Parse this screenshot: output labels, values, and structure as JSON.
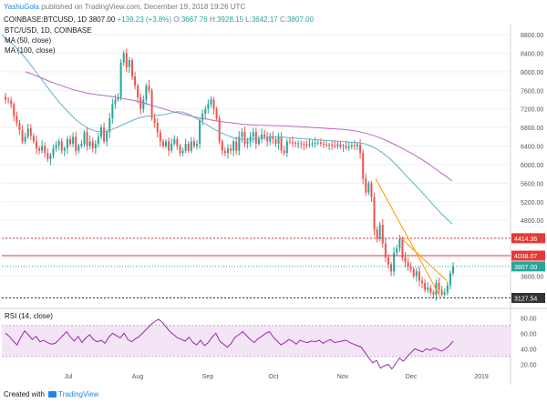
{
  "header": {
    "author": "YashuGola",
    "published": "published on TradingView.com, December 19, 2018 19:26 UTC",
    "symbol": "COINBASE:BTCUSD, 1D",
    "last_price": "3807.00",
    "change": "+139.23 (+3.8%)",
    "o_label": "O:",
    "o_value": "3667.76",
    "h_label": "H:",
    "h_value": "3928.15",
    "l_label": "L:",
    "l_value": "3642.17",
    "c_label": "C:",
    "c_value": "3807.00"
  },
  "legend": {
    "title": "BTC/USD, 1D, COINBASE",
    "ma50": "MA (50, close)",
    "ma100": "MA (100, close)"
  },
  "rsi_legend": "RSI (14, close)",
  "footer": {
    "created_with": "Created with",
    "brand": "TradingView"
  },
  "colors": {
    "up": "#26a69a",
    "down": "#ef5350",
    "ma50": "#5fb3c7",
    "ma100": "#ba68c8",
    "rsi": "#9c27b0",
    "trend": "#ff9800",
    "level_red": "#e53935",
    "grid": "#eef0f3"
  },
  "chart_data": {
    "type": "candlestick",
    "x_labels": [
      "Jul",
      "Aug",
      "Sep",
      "Oct",
      "Nov",
      "Dec",
      "2019"
    ],
    "price_ticks": [
      3600,
      4000,
      4400,
      4800,
      5200,
      5600,
      6000,
      6400,
      6800,
      7200,
      7600,
      8000,
      8400,
      8800
    ],
    "ylim": [
      3000,
      8900
    ],
    "level_labels": [
      {
        "value": 4414.36,
        "label": "4414.36",
        "style": "red-dotted"
      },
      {
        "value": 4038.07,
        "label": "4038.07",
        "style": "red-solid"
      },
      {
        "value": 3807.0,
        "label": "3807.00",
        "style": "last-price"
      },
      {
        "value": 3127.54,
        "label": "3127.54",
        "style": "dark-dotted"
      }
    ],
    "closes": [
      7400,
      7380,
      7300,
      7050,
      6900,
      6750,
      6500,
      6600,
      6780,
      6620,
      6500,
      6350,
      6300,
      6400,
      6250,
      6120,
      6200,
      6350,
      6420,
      6500,
      6300,
      6350,
      6550,
      6450,
      6600,
      6300,
      6400,
      6450,
      6700,
      6400,
      6500,
      6350,
      6450,
      6600,
      6800,
      6500,
      6700,
      7000,
      7300,
      7400,
      7450,
      8200,
      8400,
      8100,
      8250,
      7900,
      7700,
      7450,
      7200,
      7400,
      7700,
      7600,
      7000,
      6900,
      6700,
      6500,
      6400,
      6500,
      6300,
      6450,
      6550,
      6400,
      6250,
      6300,
      6450,
      6300,
      6500,
      6400,
      6450,
      6950,
      7100,
      7200,
      7300,
      7400,
      7200,
      7000,
      6500,
      6300,
      6250,
      6350,
      6300,
      6500,
      6300,
      6600,
      6700,
      6450,
      6500,
      6600,
      6700,
      6450,
      6550,
      6650,
      6600,
      6500,
      6600,
      6550,
      6450,
      6600,
      6300,
      6250,
      6500,
      6480,
      6470,
      6450,
      6460,
      6440,
      6430,
      6420,
      6450,
      6460,
      6470,
      6480,
      6450,
      6440,
      6420,
      6430,
      6410,
      6400,
      6440,
      6380,
      6400,
      6360,
      6390,
      6420,
      6400,
      6430,
      6250,
      5700,
      5400,
      5600,
      5300,
      4600,
      4400,
      4700,
      4300,
      4000,
      3850,
      3700,
      4100,
      4200,
      4400,
      4000,
      3900,
      3800,
      3750,
      3600,
      3700,
      3500,
      3450,
      3300,
      3350,
      3250,
      3200,
      3450,
      3300,
      3200,
      3250,
      3400,
      3660,
      3807
    ],
    "ma50": [
      8800,
      8680,
      8560,
      8420,
      8260,
      8080,
      7900,
      7720,
      7540,
      7370,
      7220,
      7080,
      6950,
      6850,
      6770,
      6720,
      6700,
      6720,
      6780,
      6840,
      6900,
      6960,
      7010,
      7040,
      7050,
      7060,
      7080,
      7110,
      7140,
      7130,
      7080,
      7000,
      6920,
      6840,
      6760,
      6690,
      6630,
      6580,
      6550,
      6540,
      6550,
      6560,
      6580,
      6600,
      6600,
      6590,
      6580,
      6570,
      6560,
      6550,
      6540,
      6530,
      6520,
      6510,
      6500,
      6490,
      6480,
      6470,
      6450,
      6400,
      6330,
      6240,
      6130,
      6000,
      5860,
      5710,
      5570,
      5430,
      5280,
      5130,
      4980,
      4850,
      4720
    ],
    "ma100": [
      8000,
      7940,
      7870,
      7800,
      7740,
      7680,
      7620,
      7580,
      7540,
      7510,
      7490,
      7470,
      7440,
      7410,
      7380,
      7340,
      7290,
      7240,
      7190,
      7140,
      7100,
      7060,
      7020,
      6990,
      6960,
      6930,
      6910,
      6890,
      6870,
      6860,
      6850,
      6845,
      6840,
      6835,
      6830,
      6820,
      6810,
      6800,
      6790,
      6780,
      6770,
      6760,
      6740,
      6710,
      6670,
      6620,
      6560,
      6480,
      6400,
      6310,
      6220,
      6120,
      6010,
      5890,
      5770,
      5650
    ],
    "trendlines": [
      {
        "from_price": 5700,
        "to_price": 3150,
        "color": "orange"
      },
      {
        "from_price": 4414.36,
        "to_price": 3500,
        "color": "orange"
      }
    ],
    "rsi_ticks": [
      20,
      40,
      60,
      80
    ],
    "rsi_ylim": [
      10,
      85
    ],
    "rsi_band": [
      30,
      70
    ],
    "rsi": [
      60,
      56,
      50,
      45,
      55,
      63,
      58,
      52,
      56,
      49,
      51,
      48,
      46,
      47,
      52,
      57,
      62,
      55,
      50,
      56,
      48,
      54,
      58,
      52,
      49,
      51,
      47,
      55,
      60,
      57,
      54,
      60,
      52,
      49,
      53,
      56,
      61,
      66,
      71,
      75,
      78,
      74,
      68,
      62,
      58,
      54,
      52,
      50,
      55,
      48,
      45,
      51,
      44,
      48,
      55,
      60,
      50,
      46,
      42,
      47,
      55,
      58,
      62,
      57,
      52,
      48,
      53,
      56,
      60,
      62,
      55,
      50,
      45,
      48,
      52,
      50,
      46,
      51,
      49,
      48,
      50,
      49,
      51,
      47,
      50,
      52,
      48,
      49,
      50,
      51,
      48,
      46,
      44,
      42,
      35,
      28,
      22,
      25,
      15,
      18,
      20,
      14,
      21,
      28,
      24,
      30,
      35,
      40,
      38,
      36,
      40,
      38,
      41,
      39,
      37,
      40,
      44,
      50
    ]
  }
}
